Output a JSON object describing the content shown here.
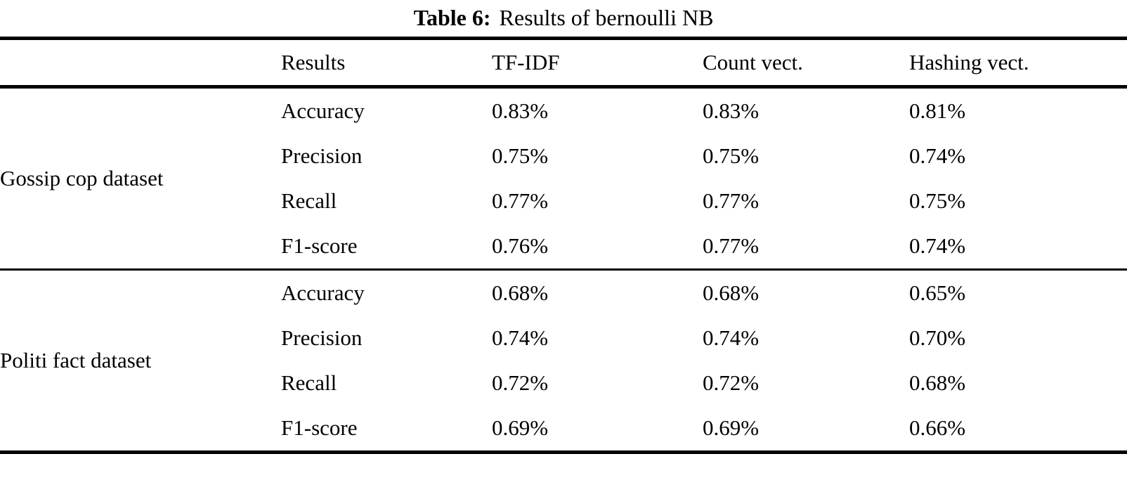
{
  "table": {
    "caption": {
      "label": "Table 6:",
      "text": "Results of bernoulli NB"
    },
    "columns": {
      "dataset": "",
      "results": "Results",
      "tfidf": "TF-IDF",
      "count": "Count vect.",
      "hashing": "Hashing vect."
    },
    "groups": [
      {
        "name": "Gossip cop dataset",
        "rows": [
          {
            "metric": "Accuracy",
            "values": [
              "0.83%",
              "0.83%",
              "0.81%"
            ]
          },
          {
            "metric": "Precision",
            "values": [
              "0.75%",
              "0.75%",
              "0.74%"
            ]
          },
          {
            "metric": "Recall",
            "values": [
              "0.77%",
              "0.77%",
              "0.75%"
            ]
          },
          {
            "metric": "F1-score",
            "values": [
              "0.76%",
              "0.77%",
              "0.74%"
            ]
          }
        ]
      },
      {
        "name": "Politi fact dataset",
        "rows": [
          {
            "metric": "Accuracy",
            "values": [
              "0.68%",
              "0.68%",
              "0.65%"
            ]
          },
          {
            "metric": "Precision",
            "values": [
              "0.74%",
              "0.74%",
              "0.70%"
            ]
          },
          {
            "metric": "Recall",
            "values": [
              "0.72%",
              "0.72%",
              "0.68%"
            ]
          },
          {
            "metric": "F1-score",
            "values": [
              "0.69%",
              "0.69%",
              "0.66%"
            ]
          }
        ]
      }
    ],
    "colors": {
      "text": "#000000",
      "background": "#ffffff",
      "rule": "#000000"
    }
  }
}
